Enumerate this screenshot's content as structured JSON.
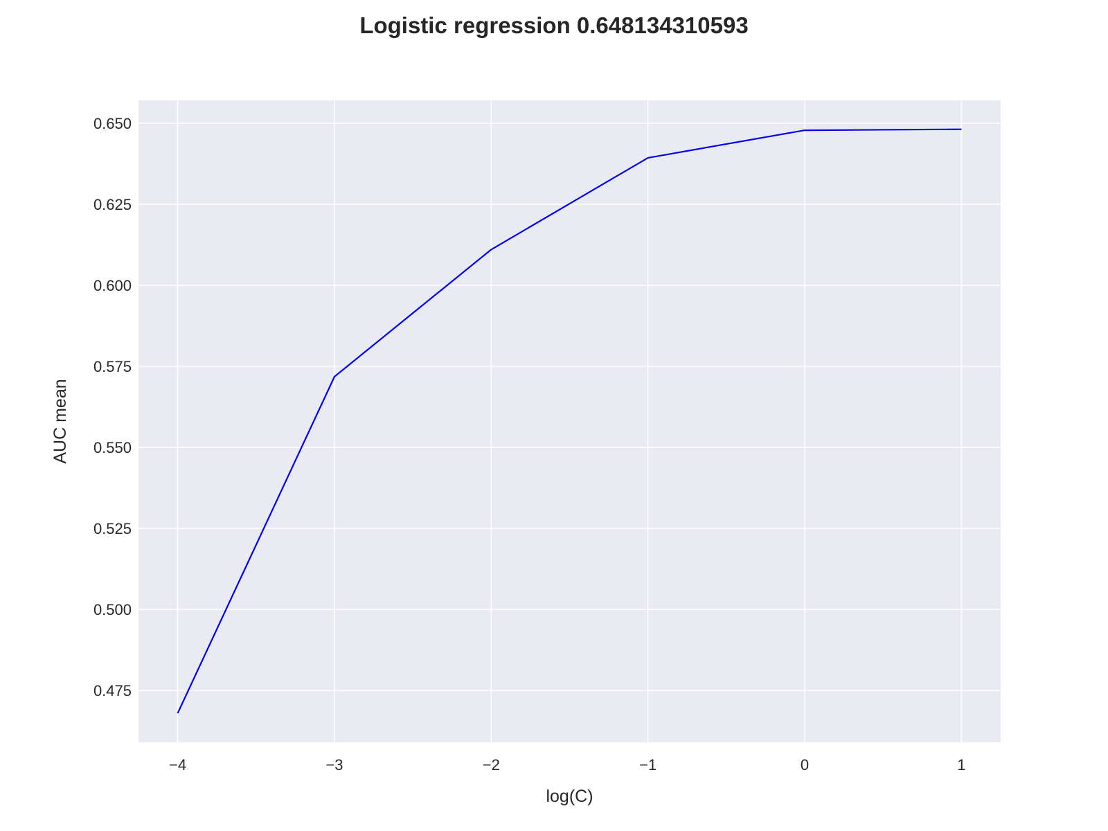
{
  "chart_data": {
    "type": "line",
    "title": "Logistic regression  0.648134310593",
    "xlabel": "log(C)",
    "ylabel": "AUC mean",
    "xlim": [
      -4.25,
      1.25
    ],
    "ylim": [
      0.459,
      0.657
    ],
    "xticks": [
      -4,
      -3,
      -2,
      -1,
      0,
      1
    ],
    "xtick_labels": [
      "−4",
      "−3",
      "−2",
      "−1",
      "0",
      "1"
    ],
    "yticks": [
      0.475,
      0.5,
      0.525,
      0.55,
      0.575,
      0.6,
      0.625,
      0.65
    ],
    "ytick_labels": [
      "0.475",
      "0.500",
      "0.525",
      "0.550",
      "0.575",
      "0.600",
      "0.625",
      "0.650"
    ],
    "grid": true,
    "series": [
      {
        "x": [
          -4,
          -3,
          -2,
          -1,
          0,
          1
        ],
        "values": [
          0.468,
          0.5718,
          0.611,
          0.6393,
          0.6478,
          0.6481
        ],
        "color": "#0000ee"
      }
    ],
    "colors": {
      "plot_background": "#eaeaf2",
      "grid": "#ffffff",
      "text": "#262626"
    }
  }
}
